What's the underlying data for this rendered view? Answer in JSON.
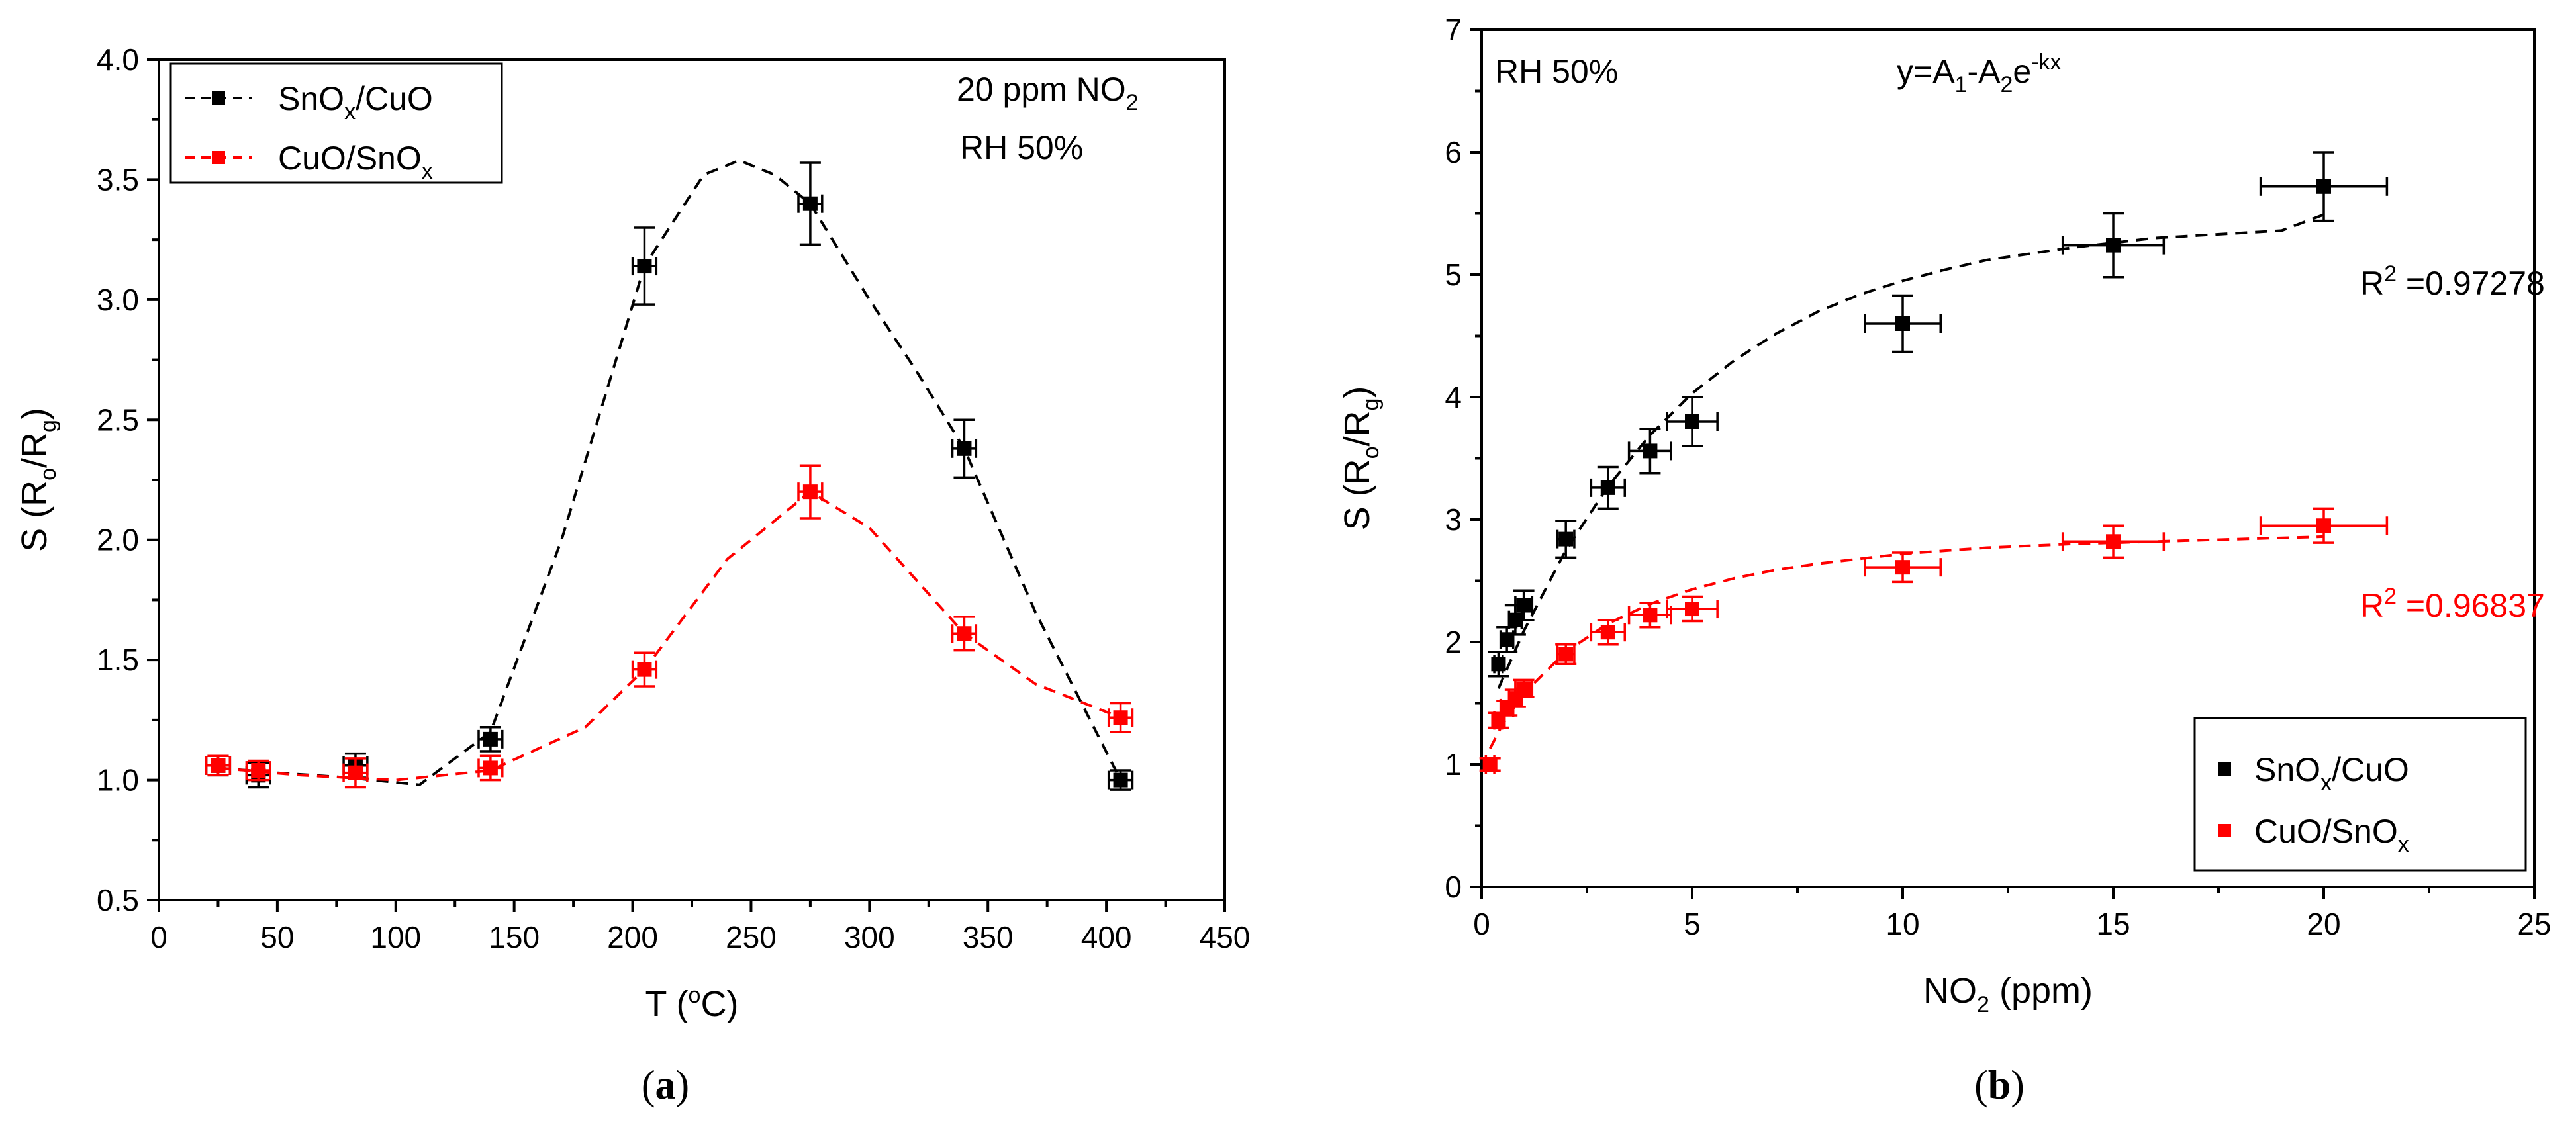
{
  "chart_data": [
    {
      "type": "scatter",
      "panel": "(a)",
      "panel_letter": "a",
      "xlabel": "T (°C)",
      "xlabel_parts": {
        "pre": "T (",
        "sup": "o",
        "post": "C)"
      },
      "ylabel": "S (Ro/Rg)",
      "ylabel_parts": {
        "pre": "S (R",
        "sub1": "o",
        "mid": "/R",
        "sub2": "g",
        "post": ")"
      },
      "xlim": [
        0,
        450
      ],
      "ylim": [
        0.5,
        4.0
      ],
      "xticks": [
        "0",
        "50",
        "100",
        "150",
        "200",
        "250",
        "300",
        "350",
        "400",
        "450"
      ],
      "xtick_values": [
        0,
        50,
        100,
        150,
        200,
        250,
        300,
        350,
        400,
        450
      ],
      "yticks": [
        "0.5",
        "1.0",
        "1.5",
        "2.0",
        "2.5",
        "3.0",
        "3.5",
        "4.0"
      ],
      "ytick_values": [
        0.5,
        1.0,
        1.5,
        2.0,
        2.5,
        3.0,
        3.5,
        4.0
      ],
      "annotations": {
        "gas": {
          "pre": "20 ppm NO",
          "sub": "2"
        },
        "rh": "RH 50%"
      },
      "legend": {
        "position": "top-left",
        "entries": [
          {
            "pre": "SnO",
            "sub": "x",
            "post": "/CuO",
            "color": "#000000"
          },
          {
            "pre": "CuO/SnO",
            "sub": "x",
            "post": "",
            "color": "#ff0000"
          }
        ]
      },
      "series": [
        {
          "name": "SnOx/CuO",
          "color": "#000000",
          "x": [
            25,
            42,
            83,
            140,
            205,
            275,
            340,
            406
          ],
          "y": [
            1.06,
            1.02,
            1.06,
            1.17,
            3.14,
            3.4,
            2.38,
            1.0
          ],
          "yerr": [
            0.04,
            0.05,
            0.05,
            0.05,
            0.16,
            0.17,
            0.12,
            0.04
          ],
          "xerr": [
            5,
            5,
            5,
            5,
            5,
            5,
            5,
            5
          ],
          "fit_x": [
            25,
            50,
            80,
            110,
            140,
            170,
            205,
            230,
            245,
            260,
            275,
            300,
            320,
            340,
            370,
            406
          ],
          "fit_y": [
            1.05,
            1.03,
            1.01,
            0.98,
            1.2,
            2.0,
            3.14,
            3.52,
            3.58,
            3.52,
            3.4,
            3.0,
            2.7,
            2.38,
            1.7,
            1.0
          ]
        },
        {
          "name": "CuO/SnOx",
          "color": "#ff0000",
          "x": [
            25,
            42,
            83,
            140,
            205,
            275,
            340,
            406
          ],
          "y": [
            1.06,
            1.04,
            1.03,
            1.05,
            1.46,
            2.2,
            1.61,
            1.26
          ],
          "yerr": [
            0.04,
            0.04,
            0.06,
            0.05,
            0.07,
            0.11,
            0.07,
            0.06
          ],
          "xerr": [
            5,
            5,
            5,
            5,
            5,
            5,
            5,
            5
          ],
          "fit_x": [
            25,
            60,
            100,
            140,
            180,
            205,
            240,
            275,
            300,
            340,
            370,
            406
          ],
          "fit_y": [
            1.05,
            1.02,
            1.0,
            1.04,
            1.22,
            1.46,
            1.92,
            2.2,
            2.05,
            1.61,
            1.4,
            1.26
          ]
        }
      ]
    },
    {
      "type": "scatter",
      "panel": "(b)",
      "panel_letter": "b",
      "xlabel": "NO2 (ppm)",
      "xlabel_parts": {
        "pre": "NO",
        "sub": "2",
        "post": " (ppm)"
      },
      "ylabel": "S (Ro/Rg)",
      "ylabel_parts": {
        "pre": "S (R",
        "sub1": "o",
        "mid": "/R",
        "sub2": "g",
        "post": ")"
      },
      "xlim": [
        0,
        25
      ],
      "ylim": [
        0,
        7
      ],
      "xticks": [
        "0",
        "5",
        "10",
        "15",
        "20",
        "25"
      ],
      "xtick_values": [
        0,
        5,
        10,
        15,
        20,
        25
      ],
      "yticks": [
        "0",
        "1",
        "2",
        "3",
        "4",
        "5",
        "6",
        "7"
      ],
      "ytick_values": [
        0,
        1,
        2,
        3,
        4,
        5,
        6,
        7
      ],
      "annotations": {
        "rh": "RH 50%",
        "equation": {
          "a": "y=A",
          "a_sub": "1",
          "b": "-A",
          "b_sub": "2",
          "c": "e",
          "c_sup": "-kx"
        },
        "r2_black": {
          "pre": "R",
          "sup": "2",
          "post": " =0.97278",
          "color": "#000000"
        },
        "r2_red": {
          "pre": "R",
          "sup": "2",
          "post": " =0.96837",
          "color": "#ff0000"
        }
      },
      "legend": {
        "position": "bottom-right",
        "entries": [
          {
            "pre": "SnO",
            "sub": "x",
            "post": "/CuO",
            "color": "#000000"
          },
          {
            "pre": "CuO/SnO",
            "sub": "x",
            "post": "",
            "color": "#ff0000"
          }
        ]
      },
      "series": [
        {
          "name": "SnOx/CuO",
          "color": "#000000",
          "x": [
            0.4,
            0.6,
            0.8,
            1,
            2,
            3,
            4,
            5,
            10,
            15,
            20
          ],
          "y": [
            1.82,
            2.02,
            2.18,
            2.3,
            2.84,
            3.26,
            3.56,
            3.8,
            4.6,
            5.24,
            5.72
          ],
          "yerr": [
            0.1,
            0.1,
            0.12,
            0.12,
            0.15,
            0.17,
            0.18,
            0.2,
            0.23,
            0.26,
            0.28
          ],
          "xerr": [
            0.1,
            0.15,
            0.15,
            0.2,
            0.2,
            0.4,
            0.5,
            0.6,
            0.9,
            1.2,
            1.5
          ],
          "fit_x": [
            0.4,
            1,
            2,
            3,
            4,
            5,
            6,
            7,
            8,
            9,
            10,
            11,
            12,
            13,
            14,
            15,
            16,
            17,
            18,
            19,
            20
          ],
          "fit_y": [
            1.62,
            2.09,
            2.75,
            3.27,
            3.69,
            4.03,
            4.3,
            4.52,
            4.7,
            4.84,
            4.95,
            5.04,
            5.12,
            5.17,
            5.22,
            5.26,
            5.3,
            5.32,
            5.34,
            5.36,
            5.49
          ]
        },
        {
          "name": "CuO/SnOx",
          "color": "#ff0000",
          "x": [
            0.2,
            0.4,
            0.6,
            0.8,
            1,
            2,
            3,
            4,
            5,
            10,
            15,
            20
          ],
          "y": [
            1.0,
            1.36,
            1.46,
            1.54,
            1.62,
            1.9,
            2.08,
            2.22,
            2.27,
            2.61,
            2.82,
            2.95
          ],
          "yerr": [
            0.05,
            0.06,
            0.06,
            0.07,
            0.07,
            0.08,
            0.1,
            0.1,
            0.1,
            0.12,
            0.13,
            0.14
          ],
          "xerr": [
            0.1,
            0.1,
            0.15,
            0.15,
            0.2,
            0.2,
            0.4,
            0.5,
            0.6,
            0.9,
            1.2,
            1.5
          ],
          "fit_x": [
            0.2,
            0.5,
            1,
            2,
            3,
            4,
            5,
            6,
            7,
            8,
            9,
            10,
            12,
            14,
            16,
            18,
            20
          ],
          "fit_y": [
            1.13,
            1.33,
            1.58,
            1.92,
            2.15,
            2.31,
            2.43,
            2.52,
            2.59,
            2.64,
            2.68,
            2.72,
            2.77,
            2.8,
            2.82,
            2.84,
            2.86
          ]
        }
      ]
    }
  ]
}
